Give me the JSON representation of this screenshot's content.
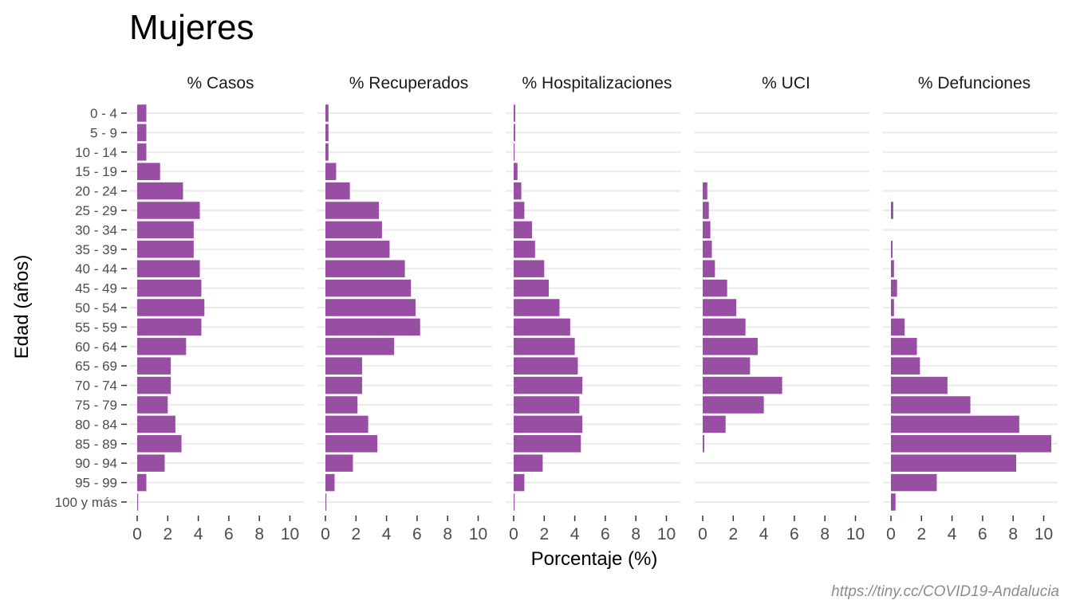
{
  "title": "Mujeres",
  "ylabel": "Edad (años)",
  "xlabel": "Porcentaje (%)",
  "caption": "https://tiny.cc/COVID19-Andalucia",
  "colors": {
    "bar": "#984ea3",
    "grid": "#ebebeb",
    "text": "#4d4d4d"
  },
  "chart_data": {
    "type": "bar",
    "orientation": "horizontal",
    "xlim": [
      0,
      11
    ],
    "xticks": [
      0,
      2,
      4,
      6,
      8,
      10
    ],
    "categories": [
      "0 - 4",
      "5 - 9",
      "10 - 14",
      "15 - 19",
      "20 - 24",
      "25 - 29",
      "30 - 34",
      "35 - 39",
      "40 - 44",
      "45 - 49",
      "50 - 54",
      "55 - 59",
      "60 - 64",
      "65 - 69",
      "70 - 74",
      "75 - 79",
      "80 - 84",
      "85 - 89",
      "90 - 94",
      "95 - 99",
      "100 y más"
    ],
    "panels": [
      {
        "name": "% Casos",
        "values": [
          0.6,
          0.6,
          0.6,
          1.5,
          3.0,
          4.1,
          3.7,
          3.7,
          4.1,
          4.2,
          4.4,
          4.2,
          3.2,
          2.2,
          2.2,
          2.0,
          2.5,
          2.9,
          1.8,
          0.6,
          0.05
        ]
      },
      {
        "name": "% Recuperados",
        "values": [
          0.2,
          0.2,
          0.2,
          0.7,
          1.6,
          3.5,
          3.7,
          4.2,
          5.2,
          5.6,
          5.9,
          6.2,
          4.5,
          2.4,
          2.4,
          2.1,
          2.8,
          3.4,
          1.8,
          0.6,
          0.05
        ]
      },
      {
        "name": "% Hospitalizaciones",
        "values": [
          0.1,
          0.1,
          0.05,
          0.25,
          0.5,
          0.7,
          1.2,
          1.4,
          2.0,
          2.3,
          3.0,
          3.7,
          4.0,
          4.2,
          4.5,
          4.3,
          4.5,
          4.4,
          1.9,
          0.7,
          0.05
        ]
      },
      {
        "name": "% UCI",
        "values": [
          0,
          0,
          0,
          0,
          0.3,
          0.4,
          0.5,
          0.6,
          0.8,
          1.6,
          2.2,
          2.8,
          3.6,
          3.1,
          5.2,
          4.0,
          1.5,
          0.1,
          0,
          0,
          0
        ]
      },
      {
        "name": "% Defunciones",
        "values": [
          0,
          0,
          0,
          0,
          0,
          0.15,
          0,
          0.1,
          0.2,
          0.4,
          0.2,
          0.9,
          1.7,
          1.9,
          3.7,
          5.2,
          8.4,
          10.5,
          8.2,
          3.0,
          0.3
        ]
      }
    ]
  }
}
